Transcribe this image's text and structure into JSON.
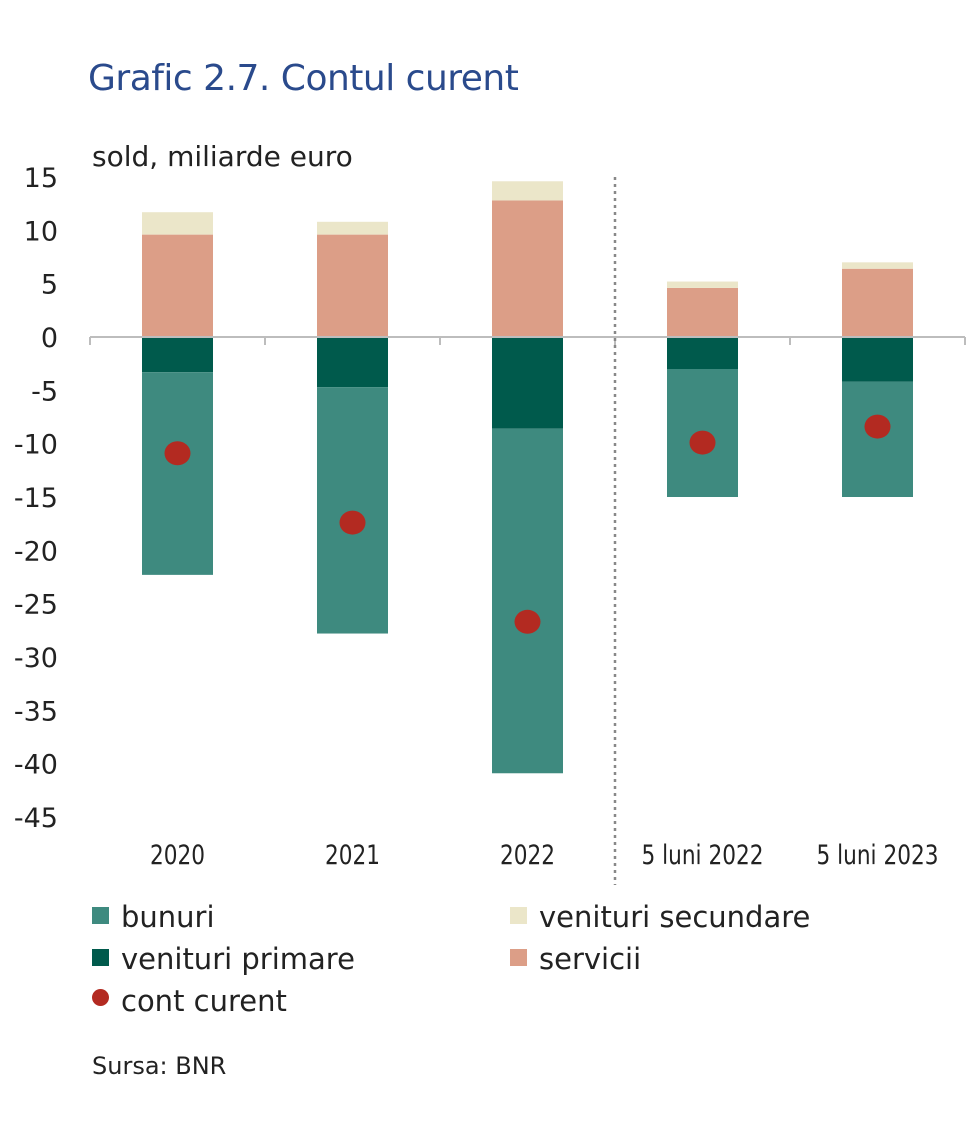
{
  "title": "Grafic 2.7. Contul curent",
  "unit_label": "sold, miliarde euro",
  "source": "Sursa: BNR",
  "colors": {
    "bunuri": "#3e8a7f",
    "venituri_primare": "#005a4c",
    "servicii": "#dc9e87",
    "venituri_secundare": "#ebe6c9",
    "cont_curent": "#b32a21",
    "title": "#2a4a8c"
  },
  "legend": {
    "bunuri": "bunuri",
    "venituri_primare": "venituri primare",
    "cont_curent": "cont curent",
    "venituri_secundare": "venituri secundare",
    "servicii": "servicii"
  },
  "chart_data": {
    "type": "bar",
    "stacked": true,
    "categories": [
      "2020",
      "2021",
      "2022",
      "5 luni 2022",
      "5 luni 2023"
    ],
    "series": [
      {
        "name": "venituri primare",
        "values": [
          -3.3,
          -4.7,
          -8.6,
          -3.0,
          -4.2
        ]
      },
      {
        "name": "bunuri",
        "values": [
          -19.0,
          -23.1,
          -32.3,
          -12.0,
          -10.8
        ]
      },
      {
        "name": "servicii",
        "values": [
          9.6,
          9.6,
          12.8,
          4.6,
          6.4
        ]
      },
      {
        "name": "venituri secundare",
        "values": [
          2.1,
          1.2,
          1.8,
          0.6,
          0.6
        ]
      },
      {
        "name": "cont curent",
        "type": "scatter",
        "values": [
          -10.9,
          -17.4,
          -26.7,
          -9.9,
          -8.4
        ]
      }
    ],
    "ylim": [
      -45,
      15
    ],
    "yticks": [
      "15",
      "10",
      "5",
      "0",
      "-5",
      "-10",
      "-15",
      "-20",
      "-25",
      "-30",
      "-35",
      "-40",
      "-45"
    ],
    "ylabel": "sold, miliarde euro",
    "grid": false,
    "legend_position": "bottom"
  }
}
